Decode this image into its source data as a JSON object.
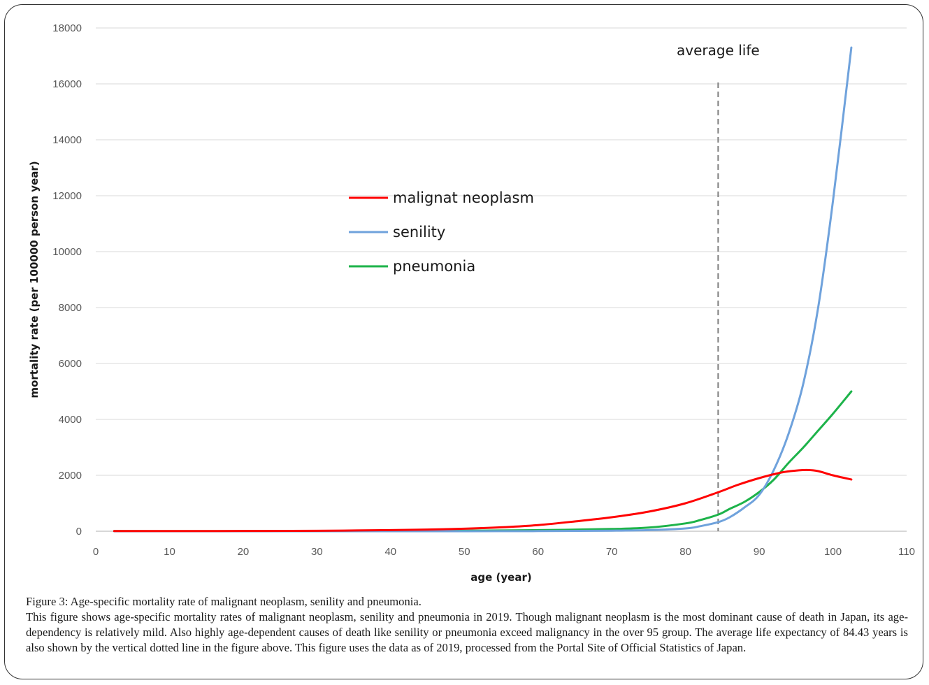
{
  "caption": {
    "title": "Figure 3: Age-specific mortality rate of malignant neoplasm, senility and pneumonia.",
    "body": "This figure shows age-specific mortality rates of malignant neoplasm, senility and pneumonia in 2019. Though malignant neoplasm is the most dominant cause of death in Japan, its age-dependency is relatively mild. Also highly age-dependent causes of death like senility or pneumonia exceed malignancy in the over 95 group. The average life expectancy of 84.43 years is also shown by the vertical dotted line in the figure above. This figure uses the data as of 2019, processed from the Portal Site of Official Statistics of Japan."
  },
  "chart_data": {
    "type": "line",
    "title": "",
    "xlabel": "age (year)",
    "ylabel": "mortality rate (per 100000 person year)",
    "xlim": [
      0,
      110
    ],
    "ylim": [
      0,
      18000
    ],
    "xticks": [
      0,
      10,
      20,
      30,
      40,
      50,
      60,
      70,
      80,
      90,
      100,
      110
    ],
    "yticks": [
      0,
      2000,
      4000,
      6000,
      8000,
      10000,
      12000,
      14000,
      16000,
      18000
    ],
    "grid": "horizontal",
    "legend_position": "center-left",
    "series": [
      {
        "name": "malignat neoplasm",
        "color": "#ff0000",
        "x": [
          2.5,
          10,
          20,
          30,
          40,
          45,
          50,
          55,
          60,
          65,
          70,
          75,
          80,
          84.5,
          87,
          90,
          93,
          95,
          96.5,
          98,
          100,
          102.5
        ],
        "y": [
          5,
          5,
          8,
          15,
          40,
          60,
          90,
          140,
          220,
          350,
          500,
          700,
          1000,
          1400,
          1650,
          1900,
          2100,
          2170,
          2190,
          2150,
          2000,
          1850
        ]
      },
      {
        "name": "senility",
        "color": "#6fa2dc",
        "x": [
          2.5,
          10,
          20,
          30,
          40,
          50,
          60,
          70,
          75,
          80,
          82,
          84.5,
          86,
          88,
          90,
          92,
          94,
          96,
          98,
          100,
          102.5
        ],
        "y": [
          0,
          0,
          0,
          0,
          0,
          0,
          5,
          20,
          40,
          100,
          180,
          330,
          500,
          850,
          1300,
          2200,
          3500,
          5300,
          8000,
          11800,
          17300
        ]
      },
      {
        "name": "pneumonia",
        "color": "#1db34a",
        "x": [
          2.5,
          10,
          20,
          30,
          40,
          50,
          60,
          70,
          75,
          80,
          82,
          84.5,
          86,
          88,
          90,
          92,
          94,
          96,
          98,
          100,
          102.5
        ],
        "y": [
          5,
          3,
          3,
          5,
          10,
          20,
          40,
          80,
          130,
          280,
          400,
          600,
          800,
          1050,
          1400,
          1850,
          2450,
          3000,
          3600,
          4200,
          5000
        ]
      }
    ],
    "annotations": [
      {
        "type": "vline",
        "x": 84.43,
        "style": "dashed",
        "color": "#808080",
        "label": "average life"
      }
    ]
  }
}
